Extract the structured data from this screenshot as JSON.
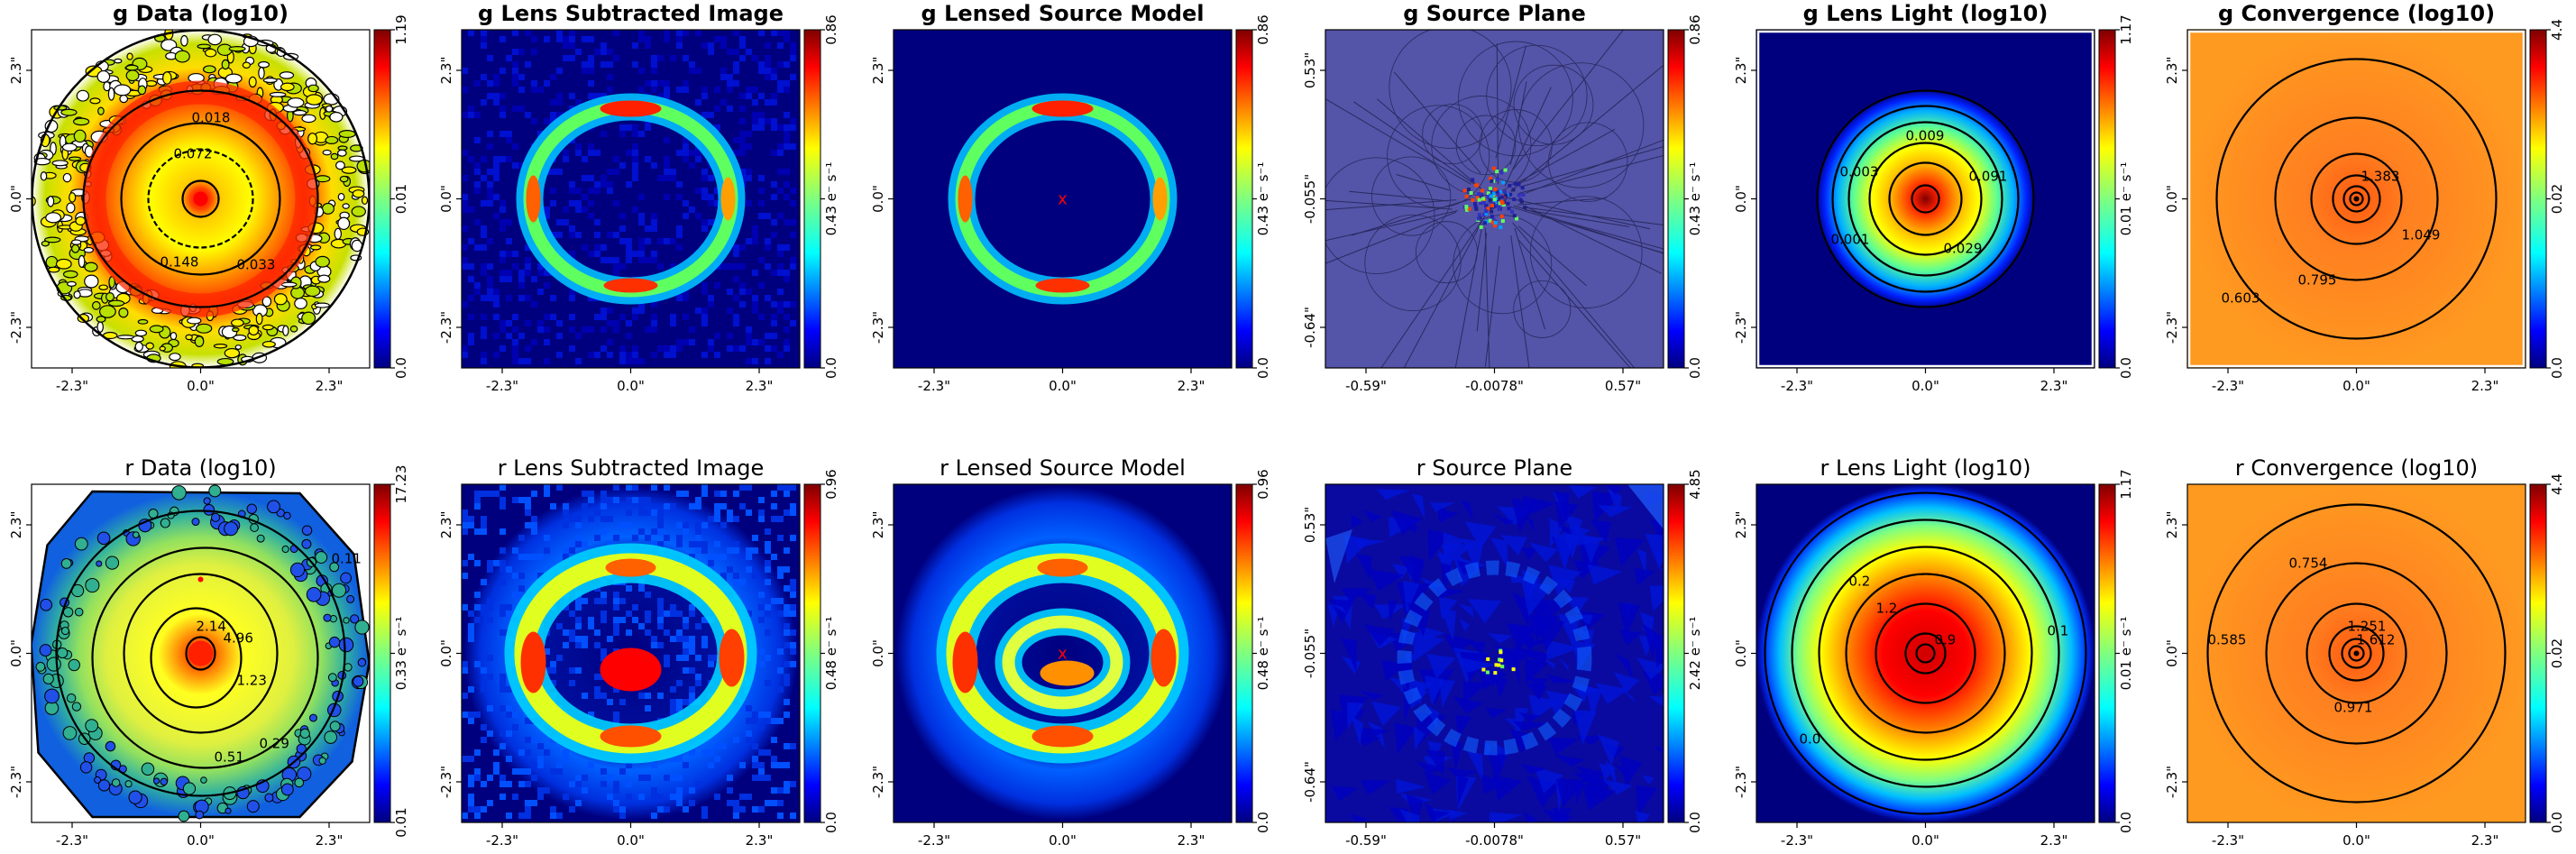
{
  "chart_data": [
    {
      "type": "heatmap",
      "band": "g",
      "kind": "data",
      "title": "g Data (log10)",
      "bold": true,
      "colorbar": {
        "ticks": [
          "0.0",
          "0.01",
          "1.19"
        ],
        "label": ""
      },
      "xticks": [
        "-2.3\"",
        "0.0\"",
        "2.3\""
      ],
      "yticks": [
        "2.3\"",
        "0.0\"",
        "-2.3\""
      ],
      "contour_labels": [
        "0.018",
        "0.072",
        "0.148",
        "0.033"
      ]
    },
    {
      "type": "heatmap",
      "band": "g",
      "kind": "lens_subtracted",
      "title": "g Lens Subtracted Image",
      "bold": true,
      "colorbar": {
        "ticks": [
          "0.0",
          "0.43",
          "0.86"
        ],
        "label": "e⁻ s⁻¹"
      },
      "xticks": [
        "-2.3\"",
        "0.0\"",
        "2.3\""
      ],
      "yticks": [
        "2.3\"",
        "0.0\"",
        "-2.3\""
      ]
    },
    {
      "type": "heatmap",
      "band": "g",
      "kind": "lensed_model",
      "title": "g Lensed Source Model",
      "bold": true,
      "colorbar": {
        "ticks": [
          "0.0",
          "0.43",
          "0.86"
        ],
        "label": "e⁻ s⁻¹"
      },
      "xticks": [
        "-2.3\"",
        "0.0\"",
        "2.3\""
      ],
      "yticks": [
        "2.3\"",
        "0.0\"",
        "-2.3\""
      ]
    },
    {
      "type": "heatmap",
      "band": "g",
      "kind": "source_plane",
      "title": "g Source Plane",
      "bold": true,
      "colorbar": {
        "ticks": [
          "0.0",
          "0.43",
          "0.86"
        ],
        "label": "e⁻ s⁻¹"
      },
      "xticks": [
        "-0.59\"",
        "-0.0078\"",
        "0.57\""
      ],
      "yticks": [
        "0.53\"",
        "-0.055\"",
        "-0.64\""
      ]
    },
    {
      "type": "heatmap",
      "band": "g",
      "kind": "lens_light",
      "title": "g Lens Light (log10)",
      "bold": true,
      "colorbar": {
        "ticks": [
          "0.0",
          "0.01",
          "1.17"
        ],
        "label": "e⁻ s⁻¹"
      },
      "xticks": [
        "-2.3\"",
        "0.0\"",
        "2.3\""
      ],
      "yticks": [
        "2.3\"",
        "0.0\"",
        "-2.3\""
      ],
      "contour_labels": [
        "0.009",
        "0.091",
        "0.029",
        "0.003",
        "0.001"
      ]
    },
    {
      "type": "heatmap",
      "band": "g",
      "kind": "convergence",
      "title": "g Convergence (log10)",
      "bold": true,
      "colorbar": {
        "ticks": [
          "0.0",
          "0.02",
          "4.4"
        ],
        "label": ""
      },
      "xticks": [
        "-2.3\"",
        "0.0\"",
        "2.3\""
      ],
      "yticks": [
        "2.3\"",
        "0.0\"",
        "-2.3\""
      ],
      "contour_labels": [
        "1.383",
        "1.049",
        "0.795",
        "0.603"
      ]
    },
    {
      "type": "heatmap",
      "band": "r",
      "kind": "data",
      "title": "r Data (log10)",
      "bold": false,
      "colorbar": {
        "ticks": [
          "0.01",
          "0.33",
          "17.23"
        ],
        "label": "e⁻ s⁻¹"
      },
      "xticks": [
        "-2.3\"",
        "0.0\"",
        "2.3\""
      ],
      "yticks": [
        "2.3\"",
        "0.0\"",
        "-2.3\""
      ],
      "contour_labels": [
        "2.14",
        "4.96",
        "1.23",
        "0.29",
        "0.51",
        "0.11"
      ]
    },
    {
      "type": "heatmap",
      "band": "r",
      "kind": "lens_subtracted",
      "title": "r Lens Subtracted Image",
      "bold": false,
      "colorbar": {
        "ticks": [
          "0.0",
          "0.48",
          "0.96"
        ],
        "label": "e⁻ s⁻¹"
      },
      "xticks": [
        "-2.3\"",
        "0.0\"",
        "2.3\""
      ],
      "yticks": [
        "2.3\"",
        "0.0\"",
        "-2.3\""
      ]
    },
    {
      "type": "heatmap",
      "band": "r",
      "kind": "lensed_model",
      "title": "r Lensed Source Model",
      "bold": false,
      "colorbar": {
        "ticks": [
          "0.0",
          "0.48",
          "0.96"
        ],
        "label": "e⁻ s⁻¹"
      },
      "xticks": [
        "-2.3\"",
        "0.0\"",
        "2.3\""
      ],
      "yticks": [
        "2.3\"",
        "0.0\"",
        "-2.3\""
      ]
    },
    {
      "type": "heatmap",
      "band": "r",
      "kind": "source_plane_r",
      "title": "r Source Plane",
      "bold": false,
      "colorbar": {
        "ticks": [
          "0.0",
          "2.42",
          "4.85"
        ],
        "label": "e⁻ s⁻¹"
      },
      "xticks": [
        "-0.59\"",
        "-0.0078\"",
        "0.57\""
      ],
      "yticks": [
        "0.53\"",
        "-0.055\"",
        "-0.64\""
      ]
    },
    {
      "type": "heatmap",
      "band": "r",
      "kind": "lens_light_r",
      "title": "r Lens Light (log10)",
      "bold": false,
      "colorbar": {
        "ticks": [
          "0.0",
          "0.01",
          "1.17"
        ],
        "label": "e⁻ s⁻¹"
      },
      "xticks": [
        "-2.3\"",
        "0.0\"",
        "2.3\""
      ],
      "yticks": [
        "2.3\"",
        "0.0\"",
        "-2.3\""
      ],
      "contour_labels": [
        "0.2",
        "1.2",
        "0.9",
        "0.1",
        "0.0"
      ]
    },
    {
      "type": "heatmap",
      "band": "r",
      "kind": "convergence",
      "title": "r Convergence (log10)",
      "bold": false,
      "colorbar": {
        "ticks": [
          "0.0",
          "0.02",
          "4.4"
        ],
        "label": ""
      },
      "xticks": [
        "-2.3\"",
        "0.0\"",
        "2.3\""
      ],
      "yticks": [
        "2.3\"",
        "0.0\"",
        "-2.3\""
      ],
      "contour_labels": [
        "0.754",
        "1.251",
        "1.612",
        "0.971",
        "0.585"
      ]
    }
  ],
  "colormap": [
    "#00007f",
    "#0000ff",
    "#007fff",
    "#00ffff",
    "#7fff7f",
    "#ffff00",
    "#ff7f00",
    "#ff0000",
    "#7f0000"
  ]
}
